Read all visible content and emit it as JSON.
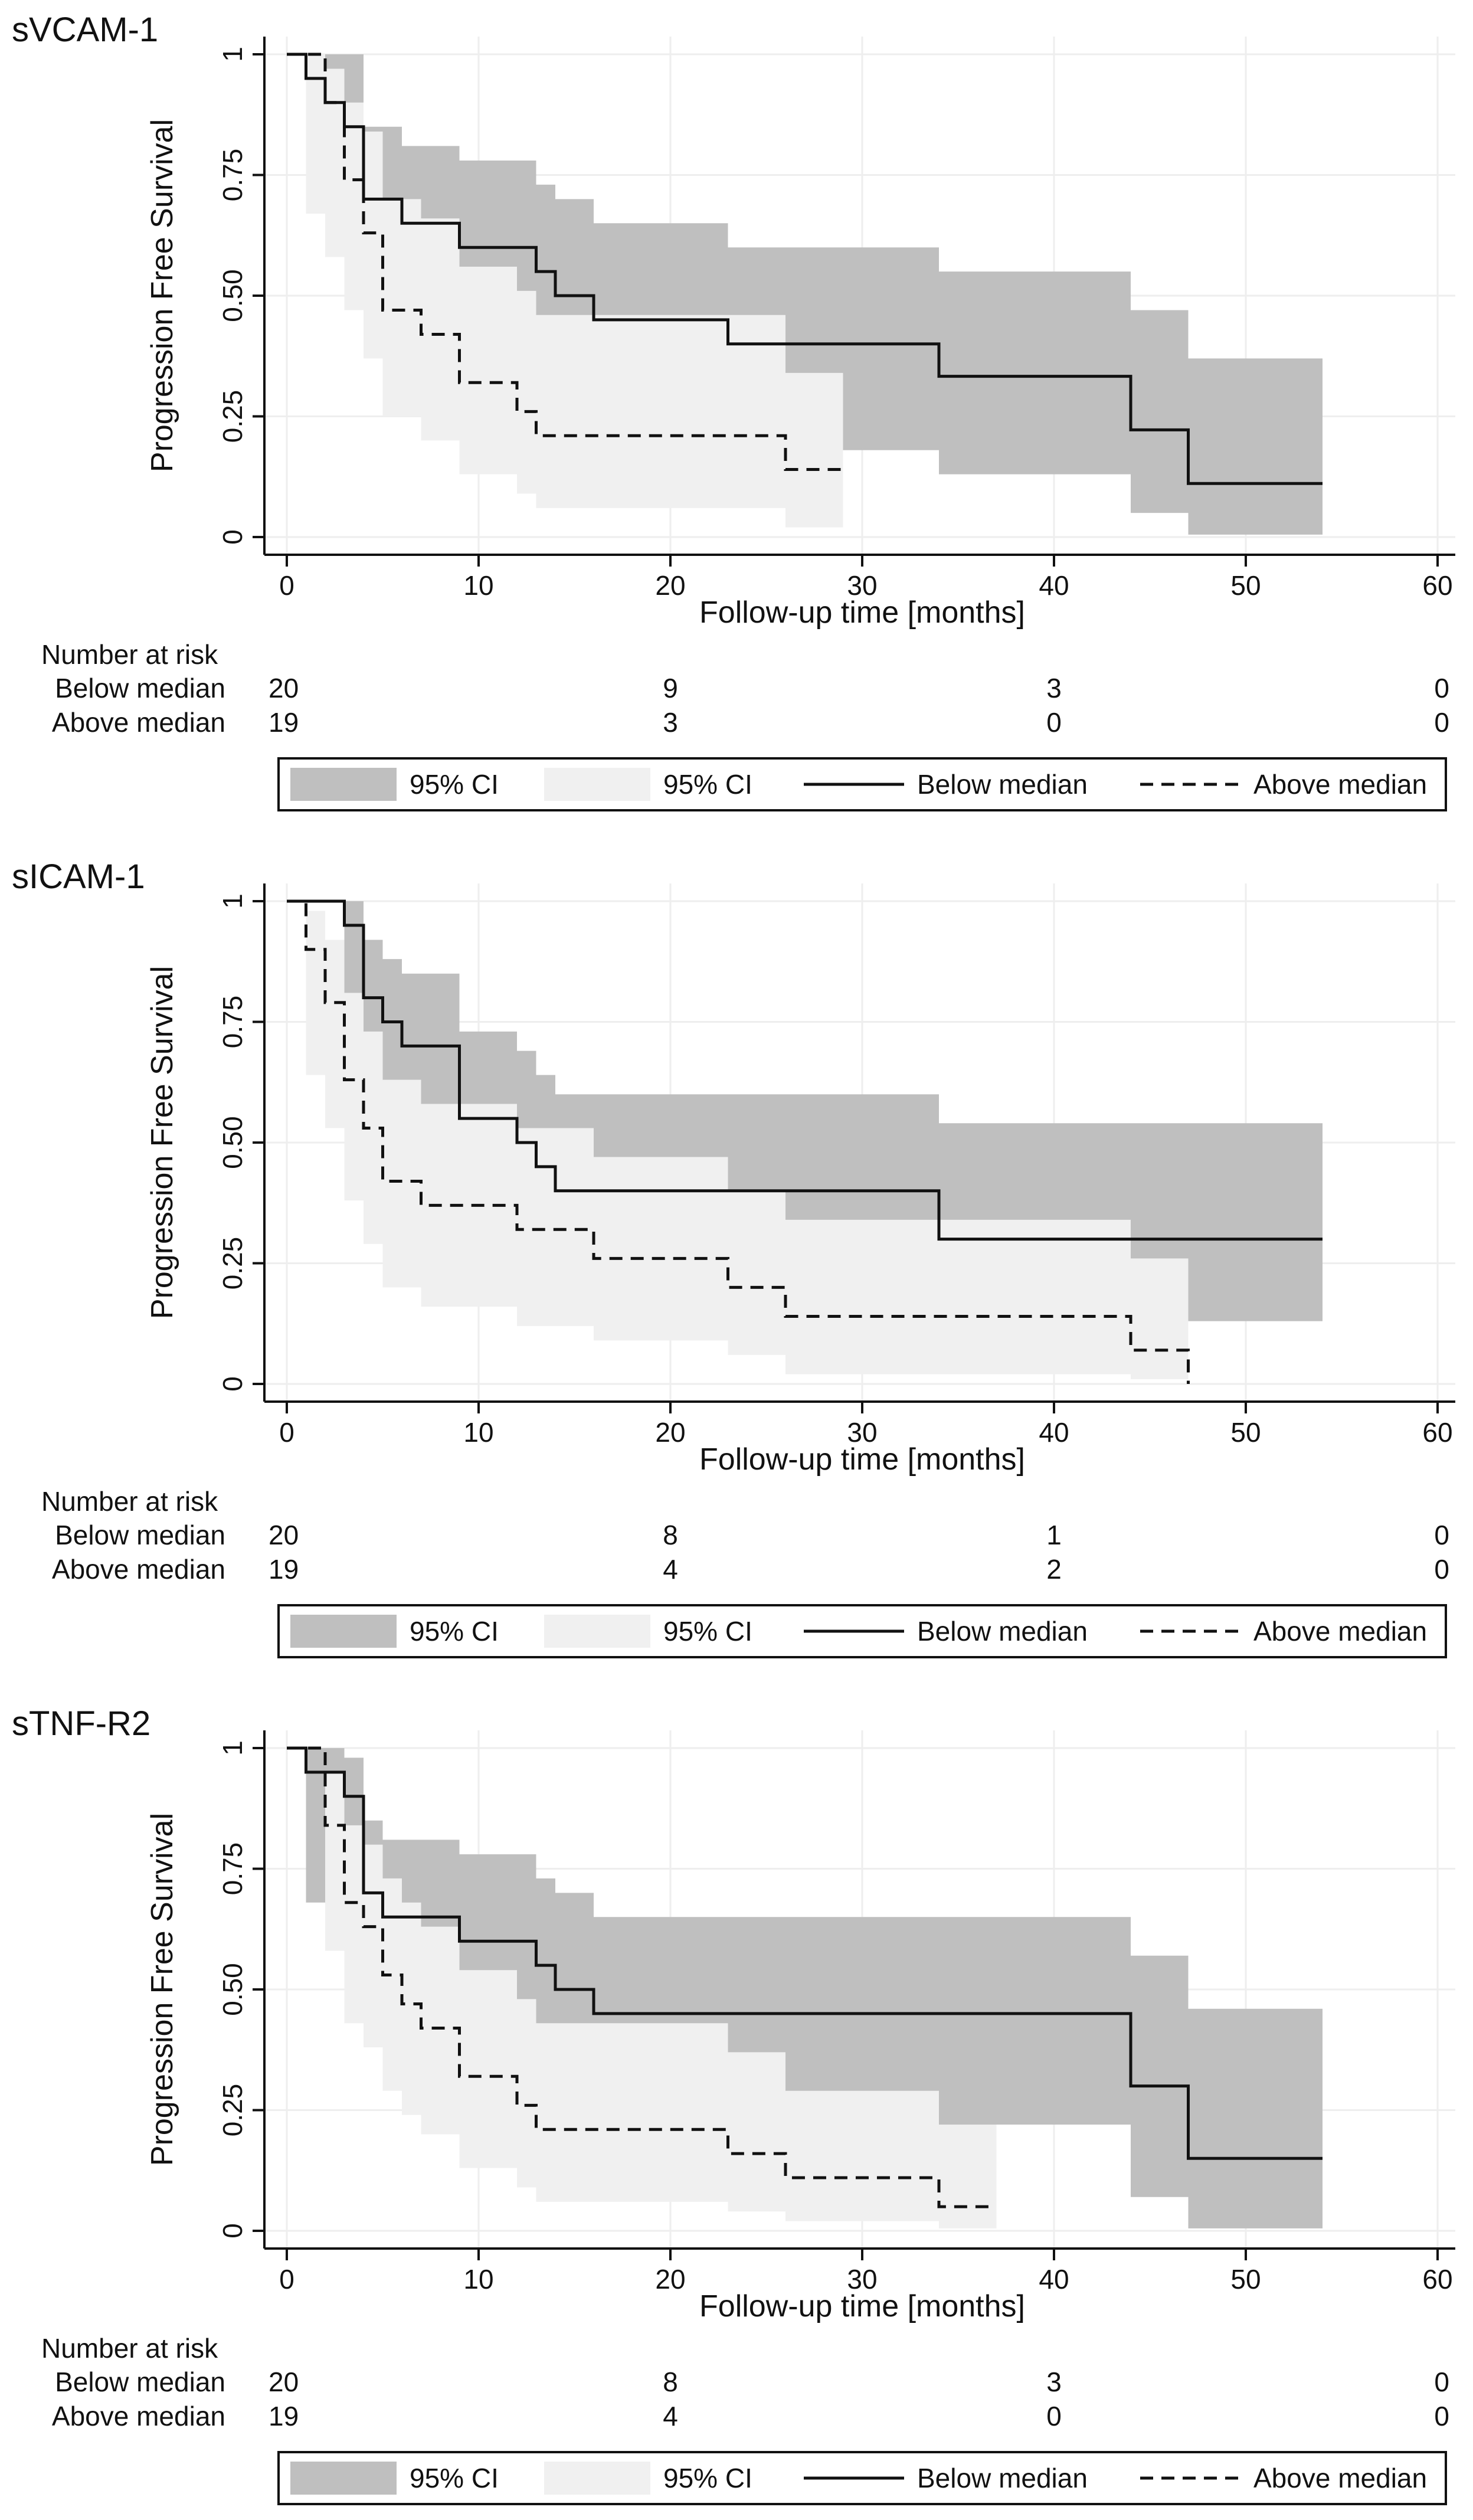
{
  "chart_data": [
    {
      "type": "line",
      "subtype": "kaplan-meier",
      "title": "sVCAM-1",
      "xlabel": "Follow-up time [months]",
      "ylabel": "Progression Free Survival",
      "xlim": [
        0,
        60
      ],
      "ylim": [
        0,
        1
      ],
      "xticks": [
        0,
        10,
        20,
        30,
        40,
        50,
        60
      ],
      "yticks": [
        0,
        0.25,
        0.5,
        0.75,
        1
      ],
      "ytick_labels": [
        "0",
        "0.25",
        "0.50",
        "0.75",
        "1"
      ],
      "grid": true,
      "series": [
        {
          "name": "Below median",
          "style": "solid",
          "steps": [
            [
              0,
              1
            ],
            [
              1,
              0.95
            ],
            [
              2,
              0.9
            ],
            [
              3,
              0.85
            ],
            [
              4,
              0.7
            ],
            [
              6,
              0.65
            ],
            [
              9,
              0.6
            ],
            [
              13,
              0.55
            ],
            [
              14,
              0.5
            ],
            [
              16,
              0.45
            ],
            [
              23,
              0.4
            ],
            [
              34,
              0.333
            ],
            [
              44,
              0.222
            ],
            [
              47,
              0.111
            ],
            [
              54,
              0.111
            ]
          ],
          "ci": [
            [
              0,
              1,
              1
            ],
            [
              1,
              0.68,
              1
            ],
            [
              2,
              0.64,
              1
            ],
            [
              3,
              0.56,
              1
            ],
            [
              4,
              0.45,
              0.85
            ],
            [
              6,
              0.4,
              0.81
            ],
            [
              9,
              0.35,
              0.78
            ],
            [
              13,
              0.3,
              0.73
            ],
            [
              14,
              0.26,
              0.7
            ],
            [
              16,
              0.22,
              0.65
            ],
            [
              23,
              0.18,
              0.6
            ],
            [
              34,
              0.13,
              0.55
            ],
            [
              44,
              0.05,
              0.47
            ],
            [
              47,
              0.005,
              0.37
            ],
            [
              54,
              0.005,
              0.37
            ]
          ],
          "ci_label": "95% CI",
          "ci_color": "#bfbfbf"
        },
        {
          "name": "Above median",
          "style": "dashed",
          "steps": [
            [
              0,
              1
            ],
            [
              1,
              1
            ],
            [
              2,
              0.9
            ],
            [
              3,
              0.74
            ],
            [
              4,
              0.63
            ],
            [
              5,
              0.47
            ],
            [
              7,
              0.42
            ],
            [
              9,
              0.32
            ],
            [
              12,
              0.26
            ],
            [
              13,
              0.21
            ],
            [
              26,
              0.14
            ],
            [
              29,
              0.14
            ]
          ],
          "ci": [
            [
              0,
              1,
              1
            ],
            [
              1,
              0.67,
              1
            ],
            [
              2,
              0.58,
              0.97
            ],
            [
              3,
              0.47,
              0.9
            ],
            [
              4,
              0.37,
              0.84
            ],
            [
              5,
              0.25,
              0.7
            ],
            [
              7,
              0.2,
              0.66
            ],
            [
              9,
              0.13,
              0.56
            ],
            [
              12,
              0.09,
              0.51
            ],
            [
              13,
              0.06,
              0.46
            ],
            [
              26,
              0.02,
              0.34
            ],
            [
              29,
              0.02,
              0.34
            ]
          ],
          "ci_label": "95% CI",
          "ci_color": "#f0f0f0"
        }
      ],
      "risk_table": {
        "header": "Number at risk",
        "times": [
          0,
          20,
          40,
          60
        ],
        "rows": [
          {
            "label": "Below median",
            "counts": [
              "20",
              "9",
              "3",
              "0"
            ]
          },
          {
            "label": "Above median",
            "counts": [
              "19",
              "3",
              "0",
              "0"
            ]
          }
        ]
      }
    },
    {
      "type": "line",
      "subtype": "kaplan-meier",
      "title": "sICAM-1",
      "xlabel": "Follow-up time [months]",
      "ylabel": "Progression Free Survival",
      "xlim": [
        0,
        60
      ],
      "ylim": [
        0,
        1
      ],
      "xticks": [
        0,
        10,
        20,
        30,
        40,
        50,
        60
      ],
      "yticks": [
        0,
        0.25,
        0.5,
        0.75,
        1
      ],
      "ytick_labels": [
        "0",
        "0.25",
        "0.50",
        "0.75",
        "1"
      ],
      "grid": true,
      "series": [
        {
          "name": "Below median",
          "style": "solid",
          "steps": [
            [
              0,
              1
            ],
            [
              3,
              0.95
            ],
            [
              4,
              0.8
            ],
            [
              5,
              0.75
            ],
            [
              6,
              0.7
            ],
            [
              9,
              0.55
            ],
            [
              12,
              0.5
            ],
            [
              13,
              0.45
            ],
            [
              14,
              0.4
            ],
            [
              34,
              0.3
            ],
            [
              54,
              0.3
            ]
          ],
          "ci": [
            [
              0,
              1,
              1
            ],
            [
              3,
              0.68,
              1
            ],
            [
              4,
              0.56,
              0.92
            ],
            [
              5,
              0.5,
              0.88
            ],
            [
              6,
              0.47,
              0.85
            ],
            [
              9,
              0.33,
              0.73
            ],
            [
              12,
              0.28,
              0.69
            ],
            [
              13,
              0.25,
              0.64
            ],
            [
              14,
              0.21,
              0.6
            ],
            [
              34,
              0.13,
              0.54
            ],
            [
              54,
              0.1,
              0.54
            ]
          ],
          "ci_label": "95% CI",
          "ci_color": "#bfbfbf"
        },
        {
          "name": "Above median",
          "style": "dashed",
          "steps": [
            [
              0,
              1
            ],
            [
              1,
              0.9
            ],
            [
              2,
              0.79
            ],
            [
              3,
              0.63
            ],
            [
              4,
              0.53
            ],
            [
              5,
              0.42
            ],
            [
              7,
              0.37
            ],
            [
              12,
              0.32
            ],
            [
              16,
              0.26
            ],
            [
              23,
              0.2
            ],
            [
              26,
              0.14
            ],
            [
              44,
              0.07
            ],
            [
              47,
              0.0
            ]
          ],
          "ci": [
            [
              0,
              1,
              1
            ],
            [
              1,
              0.64,
              0.98
            ],
            [
              2,
              0.53,
              0.92
            ],
            [
              3,
              0.38,
              0.81
            ],
            [
              4,
              0.29,
              0.73
            ],
            [
              5,
              0.2,
              0.63
            ],
            [
              7,
              0.16,
              0.58
            ],
            [
              12,
              0.12,
              0.53
            ],
            [
              16,
              0.09,
              0.47
            ],
            [
              23,
              0.06,
              0.4
            ],
            [
              26,
              0.02,
              0.34
            ],
            [
              44,
              0.01,
              0.26
            ],
            [
              47,
              0.0,
              0.0
            ]
          ],
          "ci_label": "95% CI",
          "ci_color": "#f0f0f0"
        }
      ],
      "risk_table": {
        "header": "Number at risk",
        "times": [
          0,
          20,
          40,
          60
        ],
        "rows": [
          {
            "label": "Below median",
            "counts": [
              "20",
              "8",
              "1",
              "0"
            ]
          },
          {
            "label": "Above median",
            "counts": [
              "19",
              "4",
              "2",
              "0"
            ]
          }
        ]
      }
    },
    {
      "type": "line",
      "subtype": "kaplan-meier",
      "title": "sTNF-R2",
      "xlabel": "Follow-up time [months]",
      "ylabel": "Progression Free Survival",
      "xlim": [
        0,
        60
      ],
      "ylim": [
        0,
        1
      ],
      "xticks": [
        0,
        10,
        20,
        30,
        40,
        50,
        60
      ],
      "yticks": [
        0,
        0.25,
        0.5,
        0.75,
        1
      ],
      "ytick_labels": [
        "0",
        "0.25",
        "0.50",
        "0.75",
        "1"
      ],
      "grid": true,
      "series": [
        {
          "name": "Below median",
          "style": "solid",
          "steps": [
            [
              0,
              1
            ],
            [
              1,
              0.95
            ],
            [
              3,
              0.9
            ],
            [
              4,
              0.7
            ],
            [
              5,
              0.65
            ],
            [
              9,
              0.6
            ],
            [
              13,
              0.55
            ],
            [
              14,
              0.5
            ],
            [
              16,
              0.45
            ],
            [
              44,
              0.3
            ],
            [
              47,
              0.15
            ],
            [
              54,
              0.15
            ]
          ],
          "ci": [
            [
              0,
              1,
              1
            ],
            [
              1,
              0.68,
              1
            ],
            [
              3,
              0.57,
              0.98
            ],
            [
              4,
              0.45,
              0.85
            ],
            [
              5,
              0.4,
              0.81
            ],
            [
              9,
              0.35,
              0.78
            ],
            [
              13,
              0.3,
              0.73
            ],
            [
              14,
              0.26,
              0.7
            ],
            [
              16,
              0.22,
              0.65
            ],
            [
              44,
              0.07,
              0.57
            ],
            [
              47,
              0.005,
              0.46
            ],
            [
              54,
              0.005,
              0.46
            ]
          ],
          "ci_label": "95% CI",
          "ci_color": "#bfbfbf"
        },
        {
          "name": "Above median",
          "style": "dashed",
          "steps": [
            [
              0,
              1
            ],
            [
              2,
              0.84
            ],
            [
              3,
              0.68
            ],
            [
              4,
              0.63
            ],
            [
              5,
              0.53
            ],
            [
              6,
              0.47
            ],
            [
              7,
              0.42
            ],
            [
              9,
              0.32
            ],
            [
              12,
              0.26
            ],
            [
              13,
              0.21
            ],
            [
              23,
              0.16
            ],
            [
              26,
              0.11
            ],
            [
              34,
              0.05
            ],
            [
              37,
              0.05
            ]
          ],
          "ci": [
            [
              0,
              1,
              1
            ],
            [
              2,
              0.58,
              0.95
            ],
            [
              3,
              0.43,
              0.84
            ],
            [
              4,
              0.38,
              0.8
            ],
            [
              5,
              0.29,
              0.73
            ],
            [
              6,
              0.24,
              0.68
            ],
            [
              7,
              0.2,
              0.63
            ],
            [
              9,
              0.13,
              0.54
            ],
            [
              12,
              0.09,
              0.48
            ],
            [
              13,
              0.06,
              0.43
            ],
            [
              23,
              0.04,
              0.37
            ],
            [
              26,
              0.02,
              0.29
            ],
            [
              34,
              0.005,
              0.22
            ],
            [
              37,
              0.005,
              0.22
            ]
          ],
          "ci_label": "95% CI",
          "ci_color": "#f0f0f0"
        }
      ],
      "risk_table": {
        "header": "Number at risk",
        "times": [
          0,
          20,
          40,
          60
        ],
        "rows": [
          {
            "label": "Below median",
            "counts": [
              "20",
              "8",
              "3",
              "0"
            ]
          },
          {
            "label": "Above median",
            "counts": [
              "19",
              "4",
              "0",
              "0"
            ]
          }
        ]
      }
    }
  ],
  "legend": {
    "items": [
      {
        "label": "95% CI",
        "kind": "fill",
        "color": "#bfbfbf"
      },
      {
        "label": "95% CI",
        "kind": "fill",
        "color": "#f0f0f0"
      },
      {
        "label": "Below median",
        "kind": "line",
        "style": "solid"
      },
      {
        "label": "Above median",
        "kind": "line",
        "style": "dashed"
      }
    ]
  }
}
